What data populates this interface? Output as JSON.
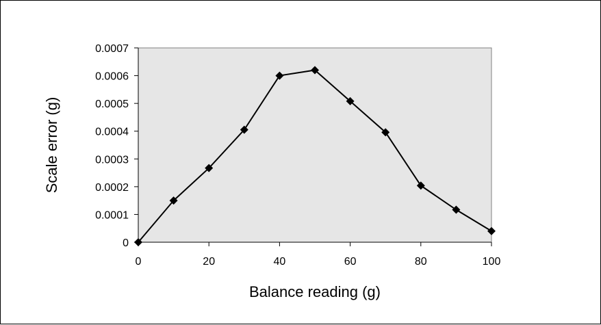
{
  "chart_data": {
    "type": "line",
    "title": "",
    "xlabel": "Balance reading (g)",
    "ylabel": "Scale error (g)",
    "xlim": [
      0,
      100
    ],
    "ylim": [
      0,
      0.0007
    ],
    "x_ticks": [
      0,
      20,
      40,
      60,
      80,
      100
    ],
    "x_tick_labels": [
      "0",
      "20",
      "40",
      "60",
      "80",
      "100"
    ],
    "y_ticks": [
      0,
      0.0001,
      0.0002,
      0.0003,
      0.0004,
      0.0005,
      0.0006,
      0.0007
    ],
    "y_tick_labels": [
      "0",
      "0.0001",
      "0.0002",
      "0.0003",
      "0.0004",
      "0.0005",
      "0.0006",
      "0.0007"
    ],
    "grid": false,
    "legend": "none",
    "series": [
      {
        "x": [
          0,
          10,
          20,
          30,
          40,
          50,
          60,
          70,
          80,
          90,
          100
        ],
        "values": [
          0,
          0.00015,
          0.000267,
          0.000405,
          0.0006,
          0.00062,
          0.000508,
          0.000396,
          0.000204,
          0.000117,
          4e-05
        ],
        "color": "#000000",
        "marker": "diamond"
      }
    ],
    "plot_background": "#e6e6e6"
  }
}
